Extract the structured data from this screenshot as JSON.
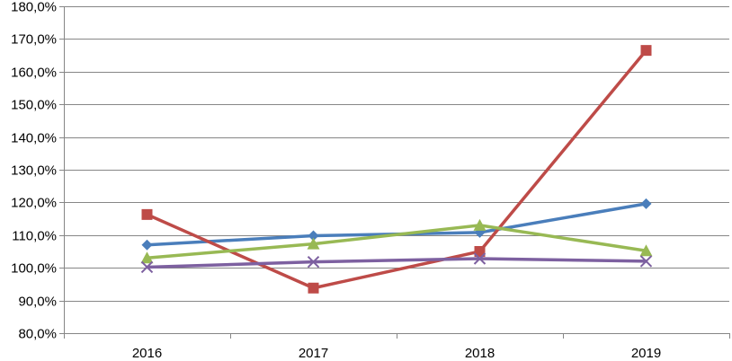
{
  "chart_data": {
    "type": "line",
    "title": "",
    "xlabel": "",
    "ylabel": "",
    "categories": [
      "2016",
      "2017",
      "2018",
      "2019"
    ],
    "ylim": [
      80,
      180
    ],
    "y_ticks": [
      80,
      90,
      100,
      110,
      120,
      130,
      140,
      150,
      160,
      170,
      180
    ],
    "y_tick_labels": [
      "80,0%",
      "90,0%",
      "100,0%",
      "110,0%",
      "120,0%",
      "130,0%",
      "140,0%",
      "150,0%",
      "160,0%",
      "170,0%",
      "180,0%"
    ],
    "grid": true,
    "legend": "none",
    "series": [
      {
        "values": [
          107.0,
          109.8,
          110.8,
          119.6
        ],
        "color": "#4a7ebb",
        "marker": "diamond"
      },
      {
        "values": [
          116.3,
          93.8,
          105.0,
          166.5
        ],
        "color": "#be4b48",
        "marker": "square"
      },
      {
        "values": [
          103.0,
          107.3,
          113.0,
          105.2
        ],
        "color": "#98b954",
        "marker": "triangle"
      },
      {
        "values": [
          100.2,
          101.8,
          102.8,
          102.0
        ],
        "color": "#7d60a0",
        "marker": "x"
      }
    ]
  }
}
